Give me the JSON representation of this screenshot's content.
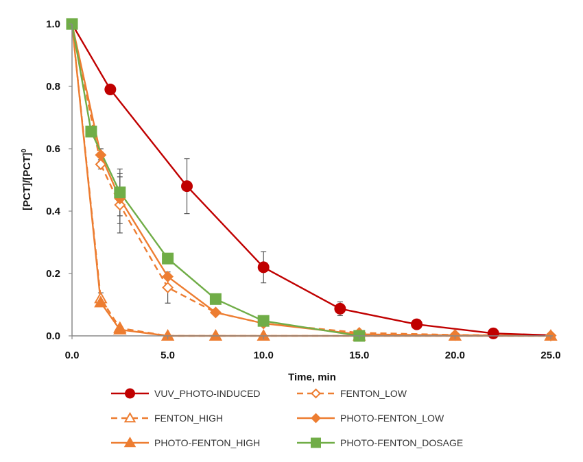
{
  "chart_data": {
    "type": "line",
    "xlabel": "Time, min",
    "ylabel_main": "[PCT]/[PCT]",
    "ylabel_sup": "0",
    "xlim": [
      0,
      25
    ],
    "ylim": [
      0,
      1
    ],
    "x_ticks": [
      0,
      5,
      10,
      15,
      20,
      25
    ],
    "x_tick_labels": [
      "0.0",
      "5.0",
      "10.0",
      "15.0",
      "20.0",
      "25.0"
    ],
    "y_ticks": [
      0,
      0.2,
      0.4,
      0.6,
      0.8,
      1.0
    ],
    "y_tick_labels": [
      "0.0",
      "0.2",
      "0.4",
      "0.6",
      "0.8",
      "1.0"
    ],
    "grid": false,
    "legend_position": "bottom",
    "series": [
      {
        "name": "VUV_PHOTO-INDUCED",
        "color": "#c00000",
        "marker": "circle",
        "dashed": false,
        "x": [
          0,
          2,
          6,
          10,
          14,
          18,
          22,
          25
        ],
        "y": [
          1.0,
          0.79,
          0.48,
          0.22,
          0.087,
          0.037,
          0.008,
          0.002
        ],
        "marker_x": [
          2,
          6,
          10,
          14,
          18,
          22
        ],
        "err": [
          [
            6,
            0.48,
            0.088
          ],
          [
            10,
            0.22,
            0.05
          ],
          [
            14,
            0.087,
            0.022
          ]
        ]
      },
      {
        "name": "FENTON_LOW",
        "color": "#ed7d31",
        "marker": "diamond-open",
        "dashed": true,
        "x": [
          0,
          1.5,
          2.5,
          5,
          7.5,
          10,
          15,
          20,
          25
        ],
        "y": [
          1.0,
          0.55,
          0.42,
          0.155,
          0.075,
          0.04,
          0.01,
          0.003,
          0.001
        ],
        "marker_x": [
          1.5,
          2.5,
          5,
          7.5,
          10,
          15,
          20,
          25
        ],
        "err": [
          [
            1.5,
            0.55,
            0.015
          ],
          [
            2.5,
            0.42,
            0.09
          ],
          [
            5,
            0.155,
            0.05
          ]
        ]
      },
      {
        "name": "FENTON_HIGH",
        "color": "#ed7d31",
        "marker": "triangle-open",
        "dashed": true,
        "x": [
          0,
          1.5,
          2.5,
          5,
          7.5,
          10,
          15,
          20,
          25
        ],
        "y": [
          1.0,
          0.12,
          0.025,
          0.0,
          0.0,
          0.0,
          0.0,
          0.0,
          0.0
        ],
        "marker_x": [
          1.5,
          2.5
        ],
        "err": [
          [
            1.5,
            0.12,
            0.018
          ]
        ]
      },
      {
        "name": "PHOTO-FENTON_LOW",
        "color": "#ed7d31",
        "marker": "diamond",
        "dashed": false,
        "x": [
          0,
          1.5,
          2.5,
          5,
          7.5,
          10,
          15,
          20,
          25
        ],
        "y": [
          1.0,
          0.58,
          0.44,
          0.19,
          0.075,
          0.04,
          0.005,
          0.002,
          0.001
        ],
        "marker_x": [
          1.5,
          2.5,
          5,
          7.5,
          10,
          15,
          20,
          25
        ],
        "err": [
          [
            1.5,
            0.58,
            0.02
          ],
          [
            2.5,
            0.44,
            0.08
          ]
        ]
      },
      {
        "name": "PHOTO-FENTON_HIGH",
        "color": "#ed7d31",
        "marker": "triangle",
        "dashed": false,
        "x": [
          0,
          1.5,
          2.5,
          5,
          7.5,
          10,
          15,
          20,
          25
        ],
        "y": [
          1.0,
          0.107,
          0.02,
          0.0,
          0.0,
          0.0,
          0.0,
          0.0,
          0.0
        ],
        "marker_x": [
          1.5,
          2.5,
          5,
          7.5,
          10,
          15,
          20,
          25
        ],
        "err": []
      },
      {
        "name": "PHOTO-FENTON_DOSAGE",
        "color": "#70ad47",
        "marker": "square",
        "dashed": false,
        "x": [
          0,
          1,
          2.5,
          5,
          7.5,
          10,
          15
        ],
        "y": [
          1.0,
          0.655,
          0.46,
          0.248,
          0.118,
          0.048,
          0.0
        ],
        "marker_x": [
          0,
          1,
          2.5,
          5,
          7.5,
          10,
          15
        ],
        "err": [
          [
            2.5,
            0.46,
            0.075
          ]
        ]
      }
    ]
  }
}
